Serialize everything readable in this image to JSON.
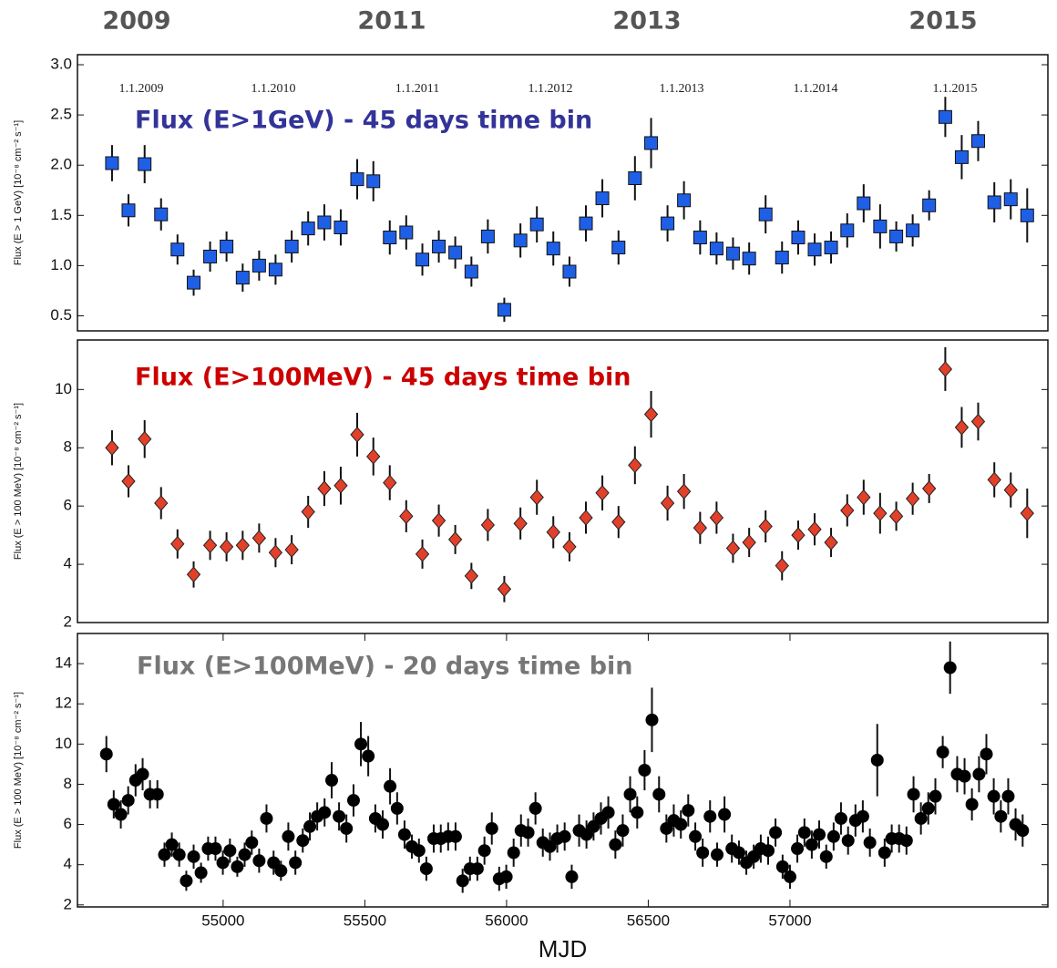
{
  "year_labels": [
    "2009",
    "2011",
    "2013",
    "2015"
  ],
  "chart_data": [
    {
      "type": "scatter",
      "title": "Flux (E>1GeV) - 45 days time bin",
      "title_color": "#333399",
      "ylabel": "Flux (E > 1 GeV) [10⁻⁸ cm⁻² s⁻¹]",
      "annotations": [
        "1.1.2009",
        "1.1.2010",
        "1.1.2011",
        "1.1.2012",
        "1.1.2013",
        "1.1.2014",
        "1.1.2015"
      ],
      "marker": "square",
      "color": "#1f5fe6",
      "xlim": [
        54486,
        57910
      ],
      "ylim": [
        0.35,
        3.1
      ],
      "yticks": [
        0.5,
        {
          "value": 1,
          "label": "1.0"
        },
        1.5,
        {
          "value": 2,
          "label": "2.0"
        },
        2.5,
        {
          "value": 3,
          "label": "3.0"
        }
      ],
      "x": [
        54608,
        54666,
        54723,
        54781,
        54839,
        54896,
        54954,
        55012,
        55069,
        55127,
        55185,
        55242,
        55300,
        55357,
        55415,
        55473,
        55530,
        55588,
        55646,
        55703,
        55761,
        55819,
        55876,
        55934,
        55992,
        56049,
        56107,
        56165,
        56222,
        56280,
        56338,
        56395,
        56453,
        56510,
        56568,
        56626,
        56683,
        56741,
        56799,
        56856,
        56914,
        56972,
        57029,
        57087,
        57145,
        57202,
        57260,
        57318,
        57375,
        57433,
        57491,
        57548,
        57606,
        57664,
        57721,
        57779,
        57837
      ],
      "values": [
        2.02,
        1.55,
        2.01,
        1.51,
        1.16,
        0.83,
        1.09,
        1.19,
        0.88,
        1.0,
        0.96,
        1.19,
        1.37,
        1.43,
        1.38,
        1.86,
        1.84,
        1.28,
        1.33,
        1.06,
        1.19,
        1.13,
        0.94,
        1.29,
        0.56,
        1.25,
        1.41,
        1.17,
        0.94,
        1.42,
        1.67,
        1.18,
        1.87,
        2.22,
        1.42,
        1.65,
        1.28,
        1.17,
        1.12,
        1.07,
        1.51,
        1.08,
        1.28,
        1.16,
        1.18,
        1.35,
        1.62,
        1.39,
        1.29,
        1.35,
        1.6,
        2.48,
        2.08,
        2.24,
        1.63,
        1.66,
        1.5
      ],
      "errors": [
        0.18,
        0.16,
        0.19,
        0.16,
        0.15,
        0.13,
        0.15,
        0.15,
        0.14,
        0.15,
        0.15,
        0.16,
        0.17,
        0.18,
        0.18,
        0.2,
        0.2,
        0.17,
        0.17,
        0.16,
        0.16,
        0.16,
        0.15,
        0.17,
        0.12,
        0.17,
        0.18,
        0.17,
        0.15,
        0.18,
        0.19,
        0.17,
        0.22,
        0.25,
        0.18,
        0.19,
        0.17,
        0.16,
        0.16,
        0.16,
        0.19,
        0.16,
        0.17,
        0.16,
        0.16,
        0.17,
        0.19,
        0.22,
        0.15,
        0.16,
        0.15,
        0.2,
        0.22,
        0.2,
        0.2,
        0.2,
        0.27
      ]
    },
    {
      "type": "scatter",
      "title": "Flux (E>100MeV) - 45 days time bin",
      "title_color": "#cc0000",
      "ylabel": "Flux (E > 100 MeV) [10⁻⁸ cm⁻² s⁻¹]",
      "marker": "diamond",
      "color": "#e3402a",
      "xlim": [
        54486,
        57910
      ],
      "ylim": [
        2,
        11.7
      ],
      "yticks": [
        2,
        4,
        6,
        8,
        10
      ],
      "x": [
        54608,
        54666,
        54723,
        54781,
        54839,
        54896,
        54954,
        55012,
        55069,
        55127,
        55185,
        55242,
        55300,
        55357,
        55415,
        55473,
        55530,
        55588,
        55646,
        55703,
        55761,
        55819,
        55876,
        55934,
        55992,
        56049,
        56107,
        56165,
        56222,
        56280,
        56338,
        56395,
        56453,
        56510,
        56568,
        56626,
        56683,
        56741,
        56799,
        56856,
        56914,
        56972,
        57029,
        57087,
        57145,
        57202,
        57260,
        57318,
        57375,
        57433,
        57491,
        57548,
        57606,
        57664,
        57721,
        57779,
        57837
      ],
      "values": [
        8.0,
        6.85,
        8.3,
        6.1,
        4.7,
        3.65,
        4.65,
        4.6,
        4.65,
        4.9,
        4.4,
        4.5,
        5.8,
        6.6,
        6.7,
        8.45,
        7.7,
        6.8,
        5.65,
        4.35,
        5.5,
        4.85,
        3.6,
        5.35,
        3.15,
        5.4,
        6.3,
        5.1,
        4.6,
        5.6,
        6.45,
        5.45,
        7.4,
        9.15,
        6.1,
        6.5,
        5.25,
        5.6,
        4.55,
        4.75,
        5.3,
        3.95,
        5.0,
        5.2,
        4.75,
        5.85,
        6.3,
        5.75,
        5.65,
        6.25,
        6.6,
        10.7,
        8.7,
        8.9,
        6.9,
        6.55,
        5.75
      ],
      "errors": [
        0.6,
        0.55,
        0.65,
        0.55,
        0.5,
        0.45,
        0.5,
        0.5,
        0.5,
        0.5,
        0.5,
        0.5,
        0.55,
        0.6,
        0.65,
        0.75,
        0.65,
        0.6,
        0.55,
        0.5,
        0.55,
        0.5,
        0.45,
        0.55,
        0.45,
        0.55,
        0.6,
        0.55,
        0.5,
        0.55,
        0.6,
        0.55,
        0.65,
        0.8,
        0.6,
        0.6,
        0.55,
        0.55,
        0.5,
        0.5,
        0.55,
        0.5,
        0.5,
        0.55,
        0.5,
        0.55,
        0.6,
        0.7,
        0.5,
        0.55,
        0.5,
        0.75,
        0.7,
        0.65,
        0.6,
        0.6,
        0.85
      ]
    },
    {
      "type": "scatter",
      "title": "Flux (E>100MeV) - 20 days time bin",
      "title_color": "#777777",
      "ylabel": "Flux (E > 100 MeV) [10⁻⁸ cm⁻² s⁻¹]",
      "xlabel": "MJD",
      "marker": "circle",
      "color": "#000000",
      "xlim": [
        54486,
        57910
      ],
      "ylim": [
        1.9,
        15.5
      ],
      "xticks": [
        55000,
        55500,
        56000,
        56500,
        57000
      ],
      "yticks": [
        2,
        4,
        6,
        8,
        10,
        12,
        14
      ],
      "x": [
        54588,
        54614,
        54639,
        54665,
        54691,
        54716,
        54742,
        54768,
        54793,
        54819,
        54845,
        54870,
        54896,
        54922,
        54947,
        54973,
        54999,
        55024,
        55050,
        55076,
        55101,
        55127,
        55153,
        55178,
        55204,
        55230,
        55255,
        55281,
        55306,
        55332,
        55358,
        55383,
        55409,
        55435,
        55460,
        55486,
        55512,
        55537,
        55563,
        55589,
        55614,
        55640,
        55666,
        55691,
        55717,
        55743,
        55768,
        55794,
        55820,
        55845,
        55871,
        55897,
        55922,
        55948,
        55974,
        55999,
        56025,
        56051,
        56076,
        56102,
        56128,
        56153,
        56179,
        56205,
        56230,
        56256,
        56282,
        56307,
        56333,
        56359,
        56384,
        56410,
        56436,
        56461,
        56487,
        56513,
        56538,
        56564,
        56590,
        56615,
        56641,
        56666,
        56692,
        56718,
        56743,
        56769,
        56795,
        56820,
        56846,
        56872,
        56897,
        56923,
        56949,
        56974,
        57000,
        57026,
        57051,
        57077,
        57103,
        57128,
        57154,
        57180,
        57205,
        57231,
        57257,
        57282,
        57308,
        57334,
        57359,
        57385,
        57411,
        57436,
        57462,
        57488,
        57513,
        57539,
        57565,
        57590,
        57616,
        57642,
        57667,
        57693,
        57719,
        57744,
        57770,
        57796,
        57821
      ],
      "values": [
        9.5,
        7.0,
        6.5,
        7.2,
        8.2,
        8.5,
        7.5,
        7.5,
        4.5,
        5.0,
        4.5,
        3.2,
        4.4,
        3.6,
        4.8,
        4.8,
        4.1,
        4.7,
        3.9,
        4.5,
        5.1,
        4.2,
        6.3,
        4.1,
        3.7,
        5.4,
        4.1,
        5.2,
        5.9,
        6.4,
        6.6,
        8.2,
        6.4,
        5.8,
        7.2,
        10.0,
        9.4,
        6.3,
        6.0,
        7.9,
        6.8,
        5.5,
        4.9,
        4.7,
        3.8,
        5.3,
        5.3,
        5.4,
        5.4,
        3.2,
        3.8,
        3.8,
        4.7,
        5.8,
        3.3,
        3.4,
        4.6,
        5.7,
        5.6,
        6.8,
        5.1,
        4.9,
        5.3,
        5.4,
        3.4,
        5.7,
        5.5,
        5.9,
        6.3,
        6.6,
        5.0,
        5.7,
        7.5,
        6.6,
        8.7,
        11.2,
        7.5,
        5.8,
        6.2,
        6.0,
        6.7,
        5.4,
        4.6,
        6.4,
        4.5,
        6.5,
        4.8,
        4.6,
        4.1,
        4.4,
        4.8,
        4.7,
        5.6,
        3.9,
        3.4,
        4.8,
        5.6,
        5.0,
        5.5,
        4.4,
        5.4,
        6.3,
        5.2,
        6.2,
        6.4,
        5.1,
        9.2,
        4.6,
        5.3,
        5.3,
        5.2,
        7.5,
        6.3,
        6.8,
        7.4,
        9.6,
        13.8,
        8.5,
        8.4,
        7.0,
        8.5,
        9.5,
        7.4,
        6.4,
        7.4,
        6.0,
        5.7
      ],
      "errors": [
        0.9,
        0.7,
        0.7,
        0.7,
        0.8,
        0.8,
        0.7,
        0.7,
        0.6,
        0.6,
        0.6,
        0.5,
        0.6,
        0.5,
        0.6,
        0.6,
        0.6,
        0.6,
        0.5,
        0.6,
        0.6,
        0.6,
        0.7,
        0.6,
        0.5,
        0.7,
        0.6,
        0.6,
        0.7,
        0.7,
        0.7,
        0.9,
        0.7,
        0.7,
        0.8,
        1.1,
        1.0,
        0.7,
        0.7,
        0.9,
        0.8,
        0.7,
        0.6,
        0.6,
        0.6,
        0.7,
        0.7,
        0.7,
        0.7,
        0.6,
        0.6,
        0.6,
        0.7,
        0.8,
        0.6,
        0.6,
        0.7,
        0.8,
        0.7,
        0.8,
        0.7,
        0.7,
        0.7,
        0.7,
        0.6,
        0.8,
        0.7,
        0.7,
        0.8,
        0.8,
        0.7,
        0.8,
        0.9,
        0.8,
        1.0,
        1.6,
        0.9,
        0.7,
        0.8,
        0.7,
        0.8,
        0.7,
        0.7,
        0.8,
        0.6,
        0.9,
        0.7,
        0.6,
        0.6,
        0.6,
        0.7,
        0.7,
        0.7,
        0.6,
        0.6,
        0.7,
        0.7,
        0.7,
        0.7,
        0.6,
        0.7,
        0.8,
        0.7,
        0.8,
        0.8,
        0.7,
        1.8,
        0.7,
        0.7,
        0.7,
        0.7,
        0.9,
        0.8,
        0.8,
        0.9,
        0.8,
        1.3,
        0.9,
        0.9,
        0.8,
        0.9,
        1.0,
        0.9,
        0.8,
        0.9,
        0.8,
        0.8
      ]
    }
  ]
}
